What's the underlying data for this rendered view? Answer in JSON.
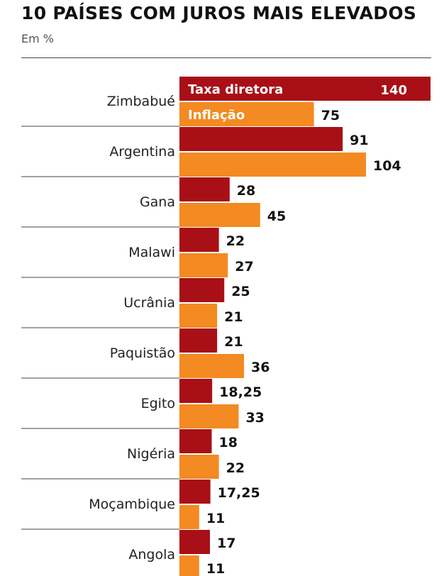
{
  "title": "10 PAÍSES COM JUROS MAIS ELEVADOS",
  "subtitle": "Em %",
  "chart_data": {
    "type": "bar",
    "orientation": "horizontal",
    "title": "10 PAÍSES COM JUROS MAIS ELEVADOS",
    "subtitle": "Em %",
    "categories": [
      "Zimbabué",
      "Argentina",
      "Gana",
      "Malawi",
      "Ucrânia",
      "Paquistão",
      "Egito",
      "Nigéria",
      "Moçambique",
      "Angola"
    ],
    "series": [
      {
        "name": "Taxa diretora",
        "color": "#a80f16",
        "values": [
          140,
          91,
          28,
          22,
          25,
          21,
          18.25,
          18,
          17.25,
          17
        ],
        "labels": [
          "140",
          "91",
          "28",
          "22",
          "25",
          "21",
          "18,25",
          "18",
          "17,25",
          "17"
        ]
      },
      {
        "name": "Inflação",
        "color": "#f38a22",
        "values": [
          75,
          104,
          45,
          27,
          21,
          36,
          33,
          22,
          11,
          11
        ],
        "labels": [
          "75",
          "104",
          "45",
          "27",
          "21",
          "36",
          "33",
          "22",
          "11",
          "11"
        ]
      }
    ],
    "xlim": [
      0,
      140
    ],
    "grid": false,
    "legend": "inside-first-bars"
  }
}
